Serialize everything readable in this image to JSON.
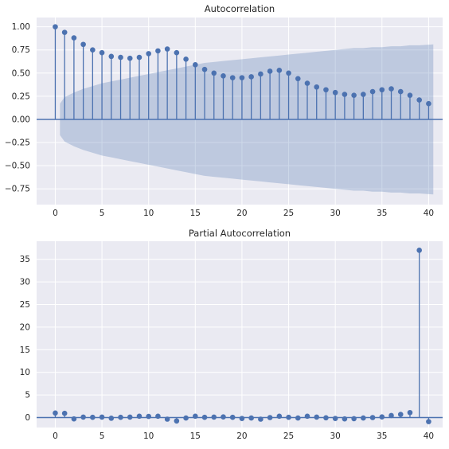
{
  "chart_data": [
    {
      "type": "stem",
      "title": "Autocorrelation",
      "xlabel": "",
      "ylabel": "",
      "xlim": [
        -2,
        41.5
      ],
      "ylim": [
        -0.92,
        1.1
      ],
      "xticks": [
        0,
        5,
        10,
        15,
        20,
        25,
        30,
        35,
        40
      ],
      "yticks": [
        -0.75,
        -0.5,
        -0.25,
        0.0,
        0.25,
        0.5,
        0.75,
        1.0
      ],
      "ytick_labels": [
        "−0.75",
        "−0.50",
        "−0.25",
        "0.00",
        "0.25",
        "0.50",
        "0.75",
        "1.00"
      ],
      "grid": true,
      "lags": [
        0,
        1,
        2,
        3,
        4,
        5,
        6,
        7,
        8,
        9,
        10,
        11,
        12,
        13,
        14,
        15,
        16,
        17,
        18,
        19,
        20,
        21,
        22,
        23,
        24,
        25,
        26,
        27,
        28,
        29,
        30,
        31,
        32,
        33,
        34,
        35,
        36,
        37,
        38,
        39,
        40
      ],
      "values": [
        1.0,
        0.94,
        0.88,
        0.81,
        0.75,
        0.72,
        0.68,
        0.67,
        0.66,
        0.67,
        0.71,
        0.74,
        0.76,
        0.72,
        0.65,
        0.59,
        0.54,
        0.5,
        0.47,
        0.45,
        0.45,
        0.46,
        0.49,
        0.52,
        0.53,
        0.5,
        0.44,
        0.39,
        0.35,
        0.32,
        0.29,
        0.27,
        0.26,
        0.27,
        0.3,
        0.32,
        0.33,
        0.3,
        0.26,
        0.21,
        0.17
      ],
      "confidence_band": [
        0.17,
        0.24,
        0.29,
        0.33,
        0.36,
        0.39,
        0.41,
        0.43,
        0.45,
        0.47,
        0.49,
        0.51,
        0.53,
        0.55,
        0.57,
        0.59,
        0.61,
        0.62,
        0.63,
        0.64,
        0.65,
        0.66,
        0.67,
        0.68,
        0.69,
        0.7,
        0.71,
        0.72,
        0.73,
        0.74,
        0.75,
        0.76,
        0.77,
        0.77,
        0.78,
        0.78,
        0.79,
        0.79,
        0.8,
        0.8,
        0.81
      ],
      "colors": {
        "series": "#4c72b0",
        "band": "#4c72b0",
        "background": "#eaeaf2",
        "grid": "#ffffff"
      }
    },
    {
      "type": "stem",
      "title": "Partial Autocorrelation",
      "xlabel": "",
      "ylabel": "",
      "xlim": [
        -2,
        41.5
      ],
      "ylim": [
        -2.2,
        39
      ],
      "xticks": [
        0,
        5,
        10,
        15,
        20,
        25,
        30,
        35,
        40
      ],
      "yticks": [
        0,
        5,
        10,
        15,
        20,
        25,
        30,
        35
      ],
      "grid": true,
      "lags": [
        0,
        1,
        2,
        3,
        4,
        5,
        6,
        7,
        8,
        9,
        10,
        11,
        12,
        13,
        14,
        15,
        16,
        17,
        18,
        19,
        20,
        21,
        22,
        23,
        24,
        25,
        26,
        27,
        28,
        29,
        30,
        31,
        32,
        33,
        34,
        35,
        36,
        37,
        38,
        39,
        40
      ],
      "values": [
        1.0,
        0.94,
        -0.3,
        0.1,
        0.05,
        0.1,
        -0.15,
        0.05,
        0.1,
        0.3,
        0.25,
        0.3,
        -0.35,
        -0.75,
        -0.1,
        0.3,
        0.05,
        0.1,
        0.15,
        0.05,
        -0.2,
        -0.1,
        -0.35,
        0.0,
        0.3,
        0.05,
        -0.1,
        0.3,
        0.1,
        -0.05,
        -0.2,
        -0.3,
        -0.25,
        -0.1,
        0.0,
        0.15,
        0.45,
        0.7,
        1.1,
        37.0,
        -0.9
      ],
      "colors": {
        "series": "#4c72b0",
        "background": "#eaeaf2",
        "grid": "#ffffff"
      }
    }
  ]
}
